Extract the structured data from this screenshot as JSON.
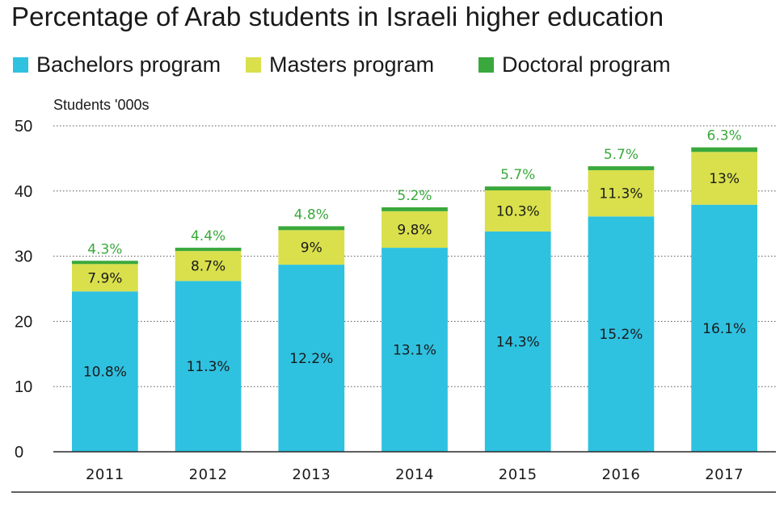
{
  "chart_data": {
    "type": "bar",
    "stacked": true,
    "title": "Percentage of Arab students in Israeli higher education",
    "ylabel": "Students '000s",
    "xlabel": "",
    "ylim": [
      0,
      50
    ],
    "yticks": [
      0,
      10,
      20,
      30,
      40,
      50
    ],
    "grid": true,
    "legend_position": "top",
    "categories": [
      "2011",
      "2012",
      "2013",
      "2014",
      "2015",
      "2016",
      "2017"
    ],
    "series": [
      {
        "name": "Bachelors program",
        "color": "#2fc1e0",
        "values": [
          24.6,
          26.2,
          28.7,
          31.3,
          33.8,
          36.1,
          37.9
        ],
        "labels": [
          "10.8%",
          "11.3%",
          "12.2%",
          "13.1%",
          "14.3%",
          "15.2%",
          "16.1%"
        ]
      },
      {
        "name": "Masters program",
        "color": "#d9e04c",
        "values": [
          4.2,
          4.6,
          5.3,
          5.6,
          6.3,
          7.1,
          8.1
        ],
        "labels": [
          "7.9%",
          "8.7%",
          "9%",
          "9.8%",
          "10.3%",
          "11.3%",
          "13%"
        ]
      },
      {
        "name": "Doctoral program",
        "color": "#3aa83c",
        "values": [
          0.5,
          0.5,
          0.6,
          0.6,
          0.6,
          0.6,
          0.7
        ],
        "labels": [
          "4.3%",
          "4.4%",
          "4.8%",
          "5.2%",
          "5.7%",
          "5.7%",
          "6.3%"
        ]
      }
    ]
  }
}
